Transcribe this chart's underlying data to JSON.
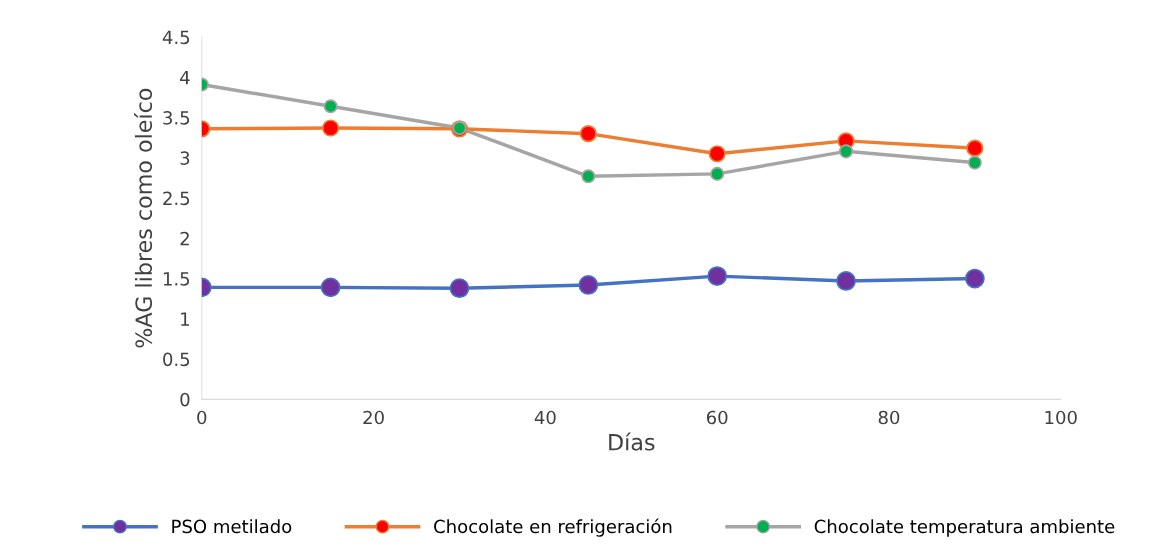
{
  "chart_data": {
    "type": "line",
    "xlabel": "Días",
    "ylabel": "%AG libres como oleíco",
    "x": [
      0,
      15,
      30,
      45,
      60,
      75,
      90
    ],
    "series": [
      {
        "name": "PSO metilado",
        "color": "#4472c4",
        "colors": [
          "#7030a0",
          "#7030a0",
          "#7030a0",
          "#7030a0",
          "#7030a0",
          "#7030a0",
          "#7030a0"
        ],
        "values": [
          1.39,
          1.39,
          1.38,
          1.42,
          1.53,
          1.47,
          1.5
        ]
      },
      {
        "name": "Chocolate en refrigeración",
        "color": "#ed7d31",
        "colors": [
          "#ff0000",
          "#ff0000",
          "#ff0000",
          "#ff0000",
          "#ff0000",
          "#ff0000",
          "#ff0000"
        ],
        "values": [
          3.36,
          3.37,
          3.36,
          3.3,
          3.05,
          3.21,
          3.12
        ]
      },
      {
        "name": "Chocolate temperatura ambiente",
        "color": "#a5a5a5",
        "colors": [
          "#00b050",
          "#00b050",
          "#00b050",
          "#00b050",
          "#00b050",
          "#00b050",
          "#00b050"
        ],
        "values": [
          3.91,
          3.64,
          3.37,
          2.77,
          2.8,
          3.08,
          2.94
        ]
      }
    ],
    "xlim": [
      0,
      100
    ],
    "xticks": [
      0,
      20,
      40,
      60,
      80,
      100
    ],
    "ylim": [
      0,
      4.5
    ],
    "yticks": [
      0,
      0.5,
      1,
      1.5,
      2,
      2.5,
      3,
      3.5,
      4,
      4.5
    ],
    "grid": false,
    "legend": "bottom",
    "marker": "circle",
    "line_style": "solid"
  }
}
